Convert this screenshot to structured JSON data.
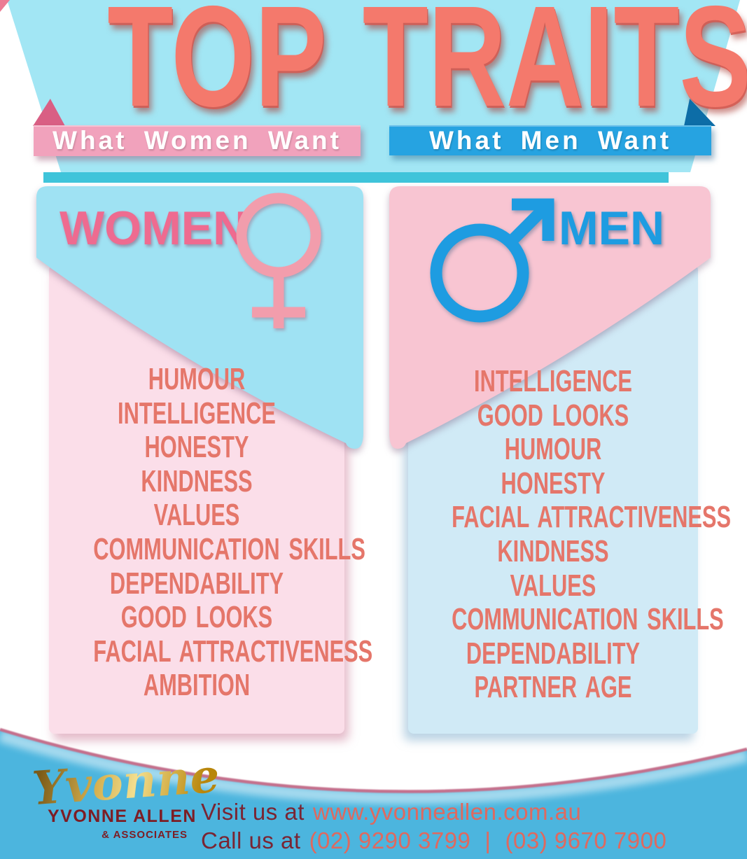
{
  "title": "TOP TRAITS",
  "banners": {
    "women": {
      "label": "What Women Want"
    },
    "men": {
      "label": "What Men Want"
    }
  },
  "columns": {
    "women": {
      "heading": "WOMEN",
      "symbol": "female-venus-symbol",
      "traits": [
        "HUMOUR",
        "INTELLIGENCE",
        "HONESTY",
        "KINDNESS",
        "VALUES",
        "COMMUNICATION SKILLS",
        "DEPENDABILITY",
        "GOOD LOOKS",
        "FACIAL ATTRACTIVENESS",
        "AMBITION"
      ]
    },
    "men": {
      "heading": "MEN",
      "symbol": "male-mars-symbol",
      "traits": [
        "INTELLIGENCE",
        "GOOD LOOKS",
        "HUMOUR",
        "HONESTY",
        "FACIAL ATTRACTIVENESS",
        "KINDNESS",
        "VALUES",
        "COMMUNICATION SKILLS",
        "DEPENDABILITY",
        "PARTNER AGE"
      ]
    }
  },
  "footer": {
    "logo_script": "Yvonne",
    "logo_name": "YVONNE ALLEN",
    "logo_suffix": "& ASSOCIATES",
    "visit_prefix": "Visit us at",
    "website": "www.yvonneallen.com.au",
    "call_prefix": "Call us at",
    "phone_1": "(02) 9290 3799",
    "phone_separator": "|",
    "phone_2": "(03) 9670 7900"
  },
  "colors": {
    "banner_blue": "#a2e6f4",
    "accent_teal": "#3fc4da",
    "corner_pink": "#ec7b94",
    "title_coral": "#f4796c",
    "ribbon_pink": "#f1a2bc",
    "ribbon_pink_fold": "#d95f84",
    "ribbon_blue": "#26a3e1",
    "ribbon_blue_fold": "#0d6da7",
    "header_blue": "#9fe2f3",
    "header_pink": "#f8c5d2",
    "body_pink": "#fbdee9",
    "body_blue": "#d0eaf6",
    "women_pink": "#ee6b90",
    "men_blue": "#1e9ce1",
    "female_symbol": "#f29dac",
    "trait_coral": "#e5766a",
    "footer_blue": "#4cb5de",
    "arc_rose": "#c4708c",
    "logo_gold": "#d0a648",
    "logo_maroon": "#7d1d24",
    "contact_maroon": "#7a2533",
    "contact_coral": "#df695f"
  }
}
